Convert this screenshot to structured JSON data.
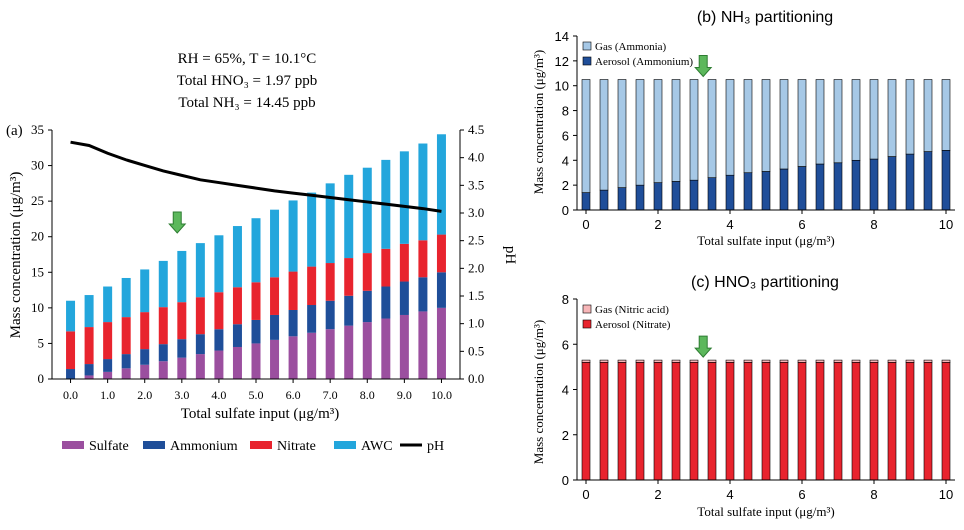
{
  "chart_data": [
    {
      "id": "a",
      "type": "bar",
      "panel_label": "(a)",
      "annotation_lines": [
        "RH = 65%, T =  10.1°C",
        "Total HNO₃ = 1.97 ppb",
        "Total NH₃ = 14.45 ppb"
      ],
      "stacked": true,
      "xlabel": "Total sulfate input (μg/m³)",
      "ylabel": "Mass concentration (μg/m³)",
      "y2label": "pH",
      "ylim": [
        0,
        35
      ],
      "y2lim": [
        0,
        4.5
      ],
      "yticks": [
        "0",
        "5",
        "10",
        "15",
        "20",
        "25",
        "30",
        "35"
      ],
      "y2ticks": [
        "0.0",
        "0.5",
        "1.0",
        "1.5",
        "2.0",
        "2.5",
        "3.0",
        "3.5",
        "4.0",
        "4.5"
      ],
      "xticks": [
        "0.0",
        "1.0",
        "2.0",
        "3.0",
        "4.0",
        "5.0",
        "6.0",
        "7.0",
        "8.0",
        "9.0",
        "10.0"
      ],
      "x": [
        0,
        0.5,
        1,
        1.5,
        2,
        2.5,
        3,
        3.5,
        4,
        4.5,
        5,
        5.5,
        6,
        6.5,
        7,
        7.5,
        8,
        8.5,
        9,
        9.5,
        10
      ],
      "arrow_at_x": 3.2,
      "series": [
        {
          "name": "Sulfate",
          "color": "#9b4f9f",
          "values": [
            0,
            0.5,
            1,
            1.5,
            2,
            2.5,
            3,
            3.5,
            4,
            4.5,
            5,
            5.5,
            6,
            6.5,
            7,
            7.5,
            8,
            8.5,
            9,
            9.5,
            10
          ]
        },
        {
          "name": "Ammonium",
          "color": "#1f4e99",
          "values": [
            1.4,
            1.6,
            1.8,
            2.0,
            2.2,
            2.4,
            2.6,
            2.8,
            3.0,
            3.2,
            3.3,
            3.5,
            3.7,
            3.9,
            4.0,
            4.2,
            4.4,
            4.5,
            4.7,
            4.8,
            5.0
          ]
        },
        {
          "name": "Nitrate",
          "color": "#e8242e",
          "values": [
            5.3,
            5.2,
            5.2,
            5.2,
            5.2,
            5.2,
            5.2,
            5.2,
            5.2,
            5.2,
            5.3,
            5.3,
            5.4,
            5.4,
            5.3,
            5.3,
            5.3,
            5.3,
            5.3,
            5.2,
            5.3
          ]
        },
        {
          "name": "AWC",
          "color": "#23a6dc",
          "values": [
            4.3,
            4.5,
            5.0,
            5.5,
            6.0,
            6.5,
            7.2,
            7.6,
            8.0,
            8.6,
            9.0,
            9.5,
            10.0,
            10.4,
            11.2,
            11.7,
            12.0,
            12.5,
            13.0,
            13.6,
            14.1
          ]
        }
      ],
      "line": {
        "name": "pH",
        "color": "#000000",
        "values": [
          4.28,
          4.22,
          4.08,
          3.96,
          3.86,
          3.76,
          3.68,
          3.6,
          3.55,
          3.5,
          3.45,
          3.4,
          3.36,
          3.32,
          3.28,
          3.24,
          3.2,
          3.16,
          3.12,
          3.08,
          3.03
        ]
      },
      "legend": [
        "Sulfate",
        "Ammonium",
        "Nitrate",
        "AWC",
        "pH"
      ]
    },
    {
      "id": "b",
      "type": "bar",
      "title": "(b) NH₃ partitioning",
      "stacked": true,
      "xlabel": "Total sulfate input (μg/m³)",
      "ylabel": "Mass concentration (μg/m³)",
      "ylim": [
        0,
        14
      ],
      "yticks": [
        "0",
        "2",
        "4",
        "6",
        "8",
        "10",
        "12",
        "14"
      ],
      "xticks": [
        "0",
        "2",
        "4",
        "6",
        "8",
        "10"
      ],
      "x": [
        0,
        0.5,
        1,
        1.5,
        2,
        2.5,
        3,
        3.5,
        4,
        4.5,
        5,
        5.5,
        6,
        6.5,
        7,
        7.5,
        8,
        8.5,
        9,
        9.5,
        10
      ],
      "arrow_at_x": 3.2,
      "series": [
        {
          "name": "Aerosol (Ammonium)",
          "color": "#1f4e99",
          "values": [
            1.4,
            1.6,
            1.8,
            2.0,
            2.2,
            2.3,
            2.4,
            2.6,
            2.8,
            3.0,
            3.1,
            3.3,
            3.5,
            3.7,
            3.8,
            4.0,
            4.1,
            4.3,
            4.5,
            4.7,
            4.8
          ]
        },
        {
          "name": "Gas (Ammonia)",
          "color": "#a6c8e6",
          "values": [
            9.1,
            8.9,
            8.7,
            8.5,
            8.3,
            8.2,
            8.1,
            7.9,
            7.7,
            7.5,
            7.4,
            7.2,
            7.0,
            6.8,
            6.7,
            6.5,
            6.4,
            6.2,
            6.0,
            5.8,
            5.7
          ]
        }
      ],
      "legend": [
        "Gas (Ammonia)",
        "Aerosol (Ammonium)"
      ]
    },
    {
      "id": "c",
      "type": "bar",
      "title": "(c) HNO₃ partitioning",
      "stacked": true,
      "xlabel": "Total sulfate input (μg/m³)",
      "ylabel": "Mass concentration (μg/m³)",
      "ylim": [
        0,
        8
      ],
      "yticks": [
        "0",
        "2",
        "4",
        "6",
        "8"
      ],
      "xticks": [
        "0",
        "2",
        "4",
        "6",
        "8",
        "10"
      ],
      "x": [
        0,
        0.5,
        1,
        1.5,
        2,
        2.5,
        3,
        3.5,
        4,
        4.5,
        5,
        5.5,
        6,
        6.5,
        7,
        7.5,
        8,
        8.5,
        9,
        9.5,
        10
      ],
      "arrow_at_x": 3.2,
      "series": [
        {
          "name": "Aerosol (Nitrate)",
          "color": "#e8242e",
          "values": [
            5.2,
            5.2,
            5.2,
            5.2,
            5.2,
            5.2,
            5.2,
            5.2,
            5.2,
            5.2,
            5.2,
            5.2,
            5.2,
            5.2,
            5.2,
            5.2,
            5.2,
            5.2,
            5.2,
            5.2,
            5.2
          ]
        },
        {
          "name": "Gas (Nitric acid)",
          "color": "#f7b6b8",
          "values": [
            0.1,
            0.1,
            0.1,
            0.1,
            0.1,
            0.1,
            0.1,
            0.1,
            0.1,
            0.1,
            0.1,
            0.1,
            0.1,
            0.1,
            0.1,
            0.1,
            0.1,
            0.1,
            0.1,
            0.1,
            0.1
          ]
        }
      ],
      "legend": [
        "Gas (Nitric acid)",
        "Aerosol (Nitrate)"
      ]
    }
  ]
}
